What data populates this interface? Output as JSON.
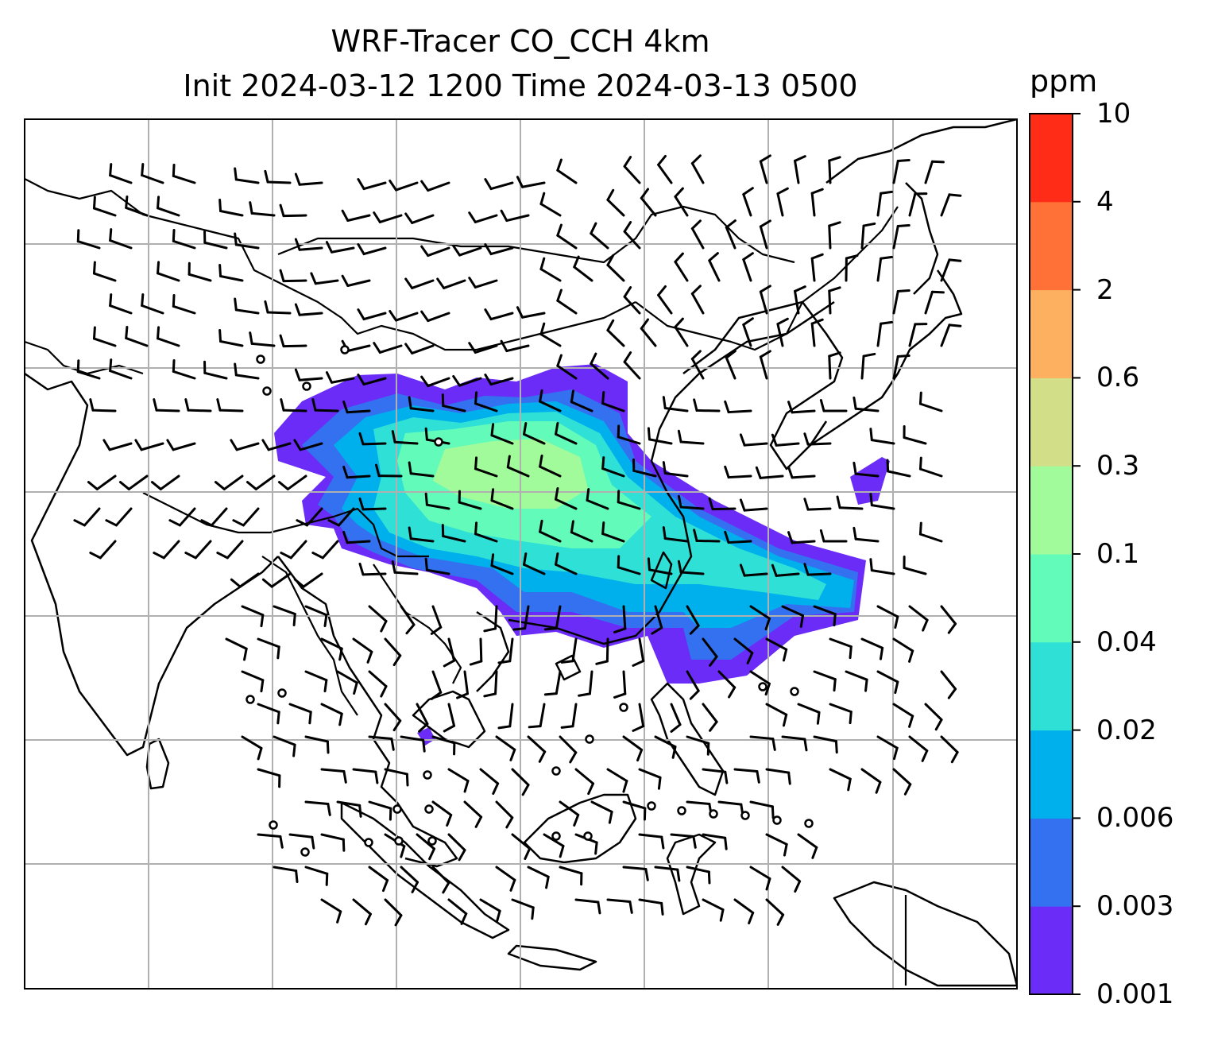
{
  "title": {
    "line1": "WRF-Tracer CO_CCH 4km",
    "line2": "Init 2024-03-12 1200 Time 2024-03-13 0500"
  },
  "colorbar": {
    "unit": "ppm",
    "levels": [
      "0.001",
      "0.003",
      "0.006",
      "0.02",
      "0.04",
      "0.1",
      "0.3",
      "0.6",
      "2",
      "4",
      "10"
    ],
    "colors": [
      "#6a2cf6",
      "#3471f1",
      "#00b0ec",
      "#2fe0d6",
      "#62fbb9",
      "#a2fb9a",
      "#d3df88",
      "#fdb060",
      "#ff7137",
      "#ff2c17"
    ]
  },
  "map": {
    "region": "South and East Asia, Maritime Continent",
    "features": [
      "coastlines",
      "country borders",
      "lat-lon gridlines",
      "wind barbs",
      "tracer concentration shading"
    ],
    "calm_marker": "circle",
    "plume_peak_band": "0.1"
  }
}
